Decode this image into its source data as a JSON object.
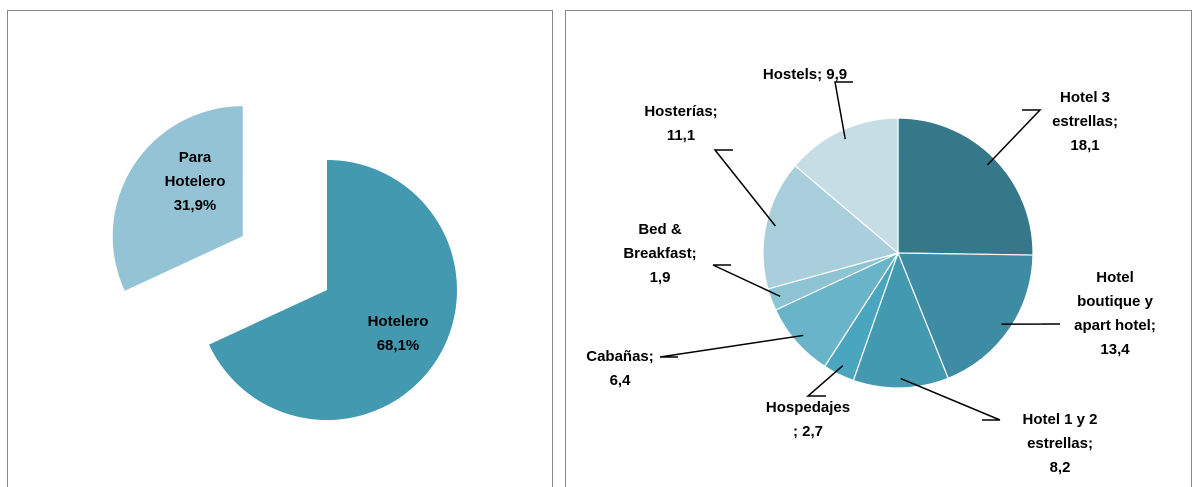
{
  "chart_data": [
    {
      "type": "pie",
      "exploded": true,
      "values": [
        68.1,
        31.9
      ],
      "value_labels": [
        "Hotelero\n68,1%",
        "Para\nHotelero\n31,9%"
      ],
      "colors": [
        "#4399b0",
        "#93c3d5"
      ]
    },
    {
      "type": "pie",
      "values": [
        18.1,
        13.4,
        8.2,
        2.7,
        6.4,
        1.9,
        11.1,
        9.9
      ],
      "value_labels": [
        "Hotel 3\nestrellas;\n18,1",
        "Hotel\nboutique y\napart hotel;\n13,4",
        "Hotel 1 y 2\nestrellas;\n8,2",
        "Hospedajes\n; 2,7",
        "Cabañas;\n6,4",
        "Bed &\nBreakfast;\n1,9",
        "Hosterías;\n11,1",
        "Hostels; 9,9"
      ],
      "colors": [
        "#34788a",
        "#3d8ca3",
        "#4399b0",
        "#4aa6bf",
        "#6ab4c9",
        "#8cc4d4",
        "#a9cfdc",
        "#c6dde6"
      ]
    }
  ]
}
